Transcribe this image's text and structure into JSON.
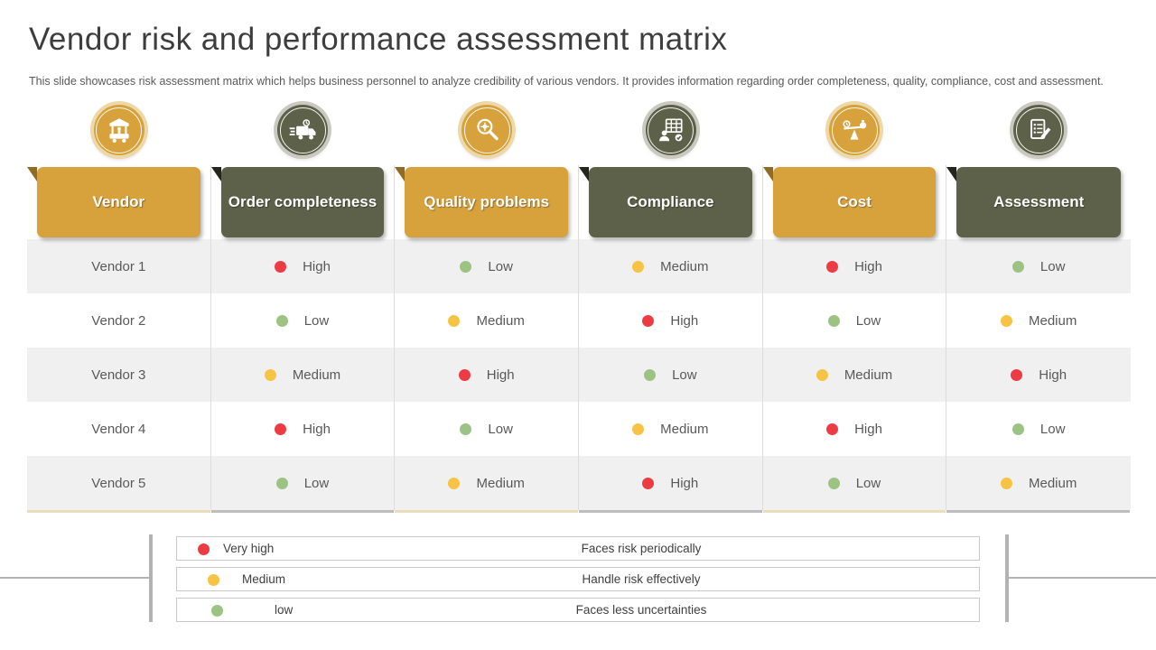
{
  "slide": {
    "title": "Vendor risk and performance assessment matrix",
    "subtitle": "This slide showcases risk assessment matrix which helps business personnel to analyze credibility of various vendors. It provides information regarding order completeness, quality, compliance, cost and assessment."
  },
  "colors": {
    "gold": "#D7A13C",
    "olive": "#5E6149",
    "red": "#ED3B44",
    "yellow": "#F6C344",
    "green": "#9CC383"
  },
  "table": {
    "columns": [
      {
        "label": "Vendor",
        "theme": "gold",
        "icon": "vendor-stall-icon"
      },
      {
        "label": "Order completeness",
        "theme": "olive",
        "icon": "delivery-truck-icon"
      },
      {
        "label": "Quality problems",
        "theme": "gold",
        "icon": "magnifier-icon"
      },
      {
        "label": "Compliance",
        "theme": "olive",
        "icon": "compliance-checklist-icon"
      },
      {
        "label": "Cost",
        "theme": "gold",
        "icon": "balance-scale-icon"
      },
      {
        "label": "Assessment",
        "theme": "olive",
        "icon": "assessment-note-icon"
      }
    ],
    "rows": [
      {
        "vendor": "Vendor 1",
        "cells": [
          {
            "level": "High",
            "color": "red"
          },
          {
            "level": "Low",
            "color": "green"
          },
          {
            "level": "Medium",
            "color": "yellow"
          },
          {
            "level": "High",
            "color": "red"
          },
          {
            "level": "Low",
            "color": "green"
          }
        ]
      },
      {
        "vendor": "Vendor 2",
        "cells": [
          {
            "level": "Low",
            "color": "green"
          },
          {
            "level": "Medium",
            "color": "yellow"
          },
          {
            "level": "High",
            "color": "red"
          },
          {
            "level": "Low",
            "color": "green"
          },
          {
            "level": "Medium",
            "color": "yellow"
          }
        ]
      },
      {
        "vendor": "Vendor 3",
        "cells": [
          {
            "level": "Medium",
            "color": "yellow"
          },
          {
            "level": "High",
            "color": "red"
          },
          {
            "level": "Low",
            "color": "green"
          },
          {
            "level": "Medium",
            "color": "yellow"
          },
          {
            "level": "High",
            "color": "red"
          }
        ]
      },
      {
        "vendor": "Vendor 4",
        "cells": [
          {
            "level": "High",
            "color": "red"
          },
          {
            "level": "Low",
            "color": "green"
          },
          {
            "level": "Medium",
            "color": "yellow"
          },
          {
            "level": "High",
            "color": "red"
          },
          {
            "level": "Low",
            "color": "green"
          }
        ]
      },
      {
        "vendor": "Vendor 5",
        "cells": [
          {
            "level": "Low",
            "color": "green"
          },
          {
            "level": "Medium",
            "color": "yellow"
          },
          {
            "level": "High",
            "color": "red"
          },
          {
            "level": "Low",
            "color": "green"
          },
          {
            "level": "Medium",
            "color": "yellow"
          }
        ]
      }
    ]
  },
  "legend": [
    {
      "label": "Very high",
      "color": "red",
      "description": "Faces risk periodically"
    },
    {
      "label": "Medium",
      "color": "yellow",
      "description": "Handle  risk effectively"
    },
    {
      "label": "low",
      "color": "green",
      "description": "Faces less uncertainties"
    }
  ]
}
